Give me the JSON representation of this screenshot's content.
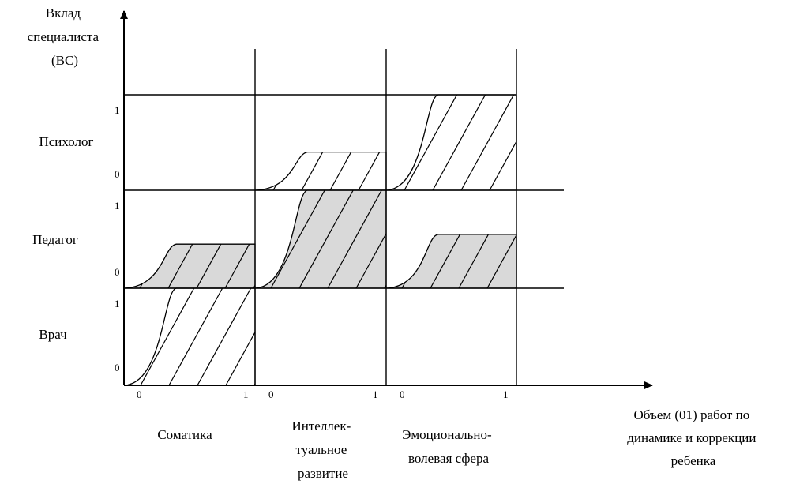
{
  "axes": {
    "y_title": [
      "Вклад",
      "специалиста",
      "(ВС)"
    ],
    "x_title": [
      "Объем (01) работ по",
      "динамике и коррекции",
      "ребенка"
    ]
  },
  "rows": [
    {
      "label": "Психолог",
      "tick_top": "1",
      "tick_bottom": "0"
    },
    {
      "label": "Педагог",
      "tick_top": "1",
      "tick_bottom": "0"
    },
    {
      "label": "Врач",
      "tick_top": "1",
      "tick_bottom": "0"
    }
  ],
  "columns": [
    {
      "label_lines": [
        "Соматика"
      ],
      "tick_start": "0",
      "tick_end": "1"
    },
    {
      "label_lines": [
        "Интеллек-",
        "туальное",
        "развитие"
      ],
      "tick_start": "0",
      "tick_end": "1"
    },
    {
      "label_lines": [
        "Эмоционально-",
        "волевая сфера"
      ],
      "tick_start": "0",
      "tick_end": "1"
    }
  ],
  "contributions": [
    {
      "row": "Психолог",
      "column": "Соматика",
      "level": 0,
      "shaded": false
    },
    {
      "row": "Психолог",
      "column": "Интеллек-туальное развитие",
      "level": 0.4,
      "shaded": false
    },
    {
      "row": "Психолог",
      "column": "Эмоционально-волевая сфера",
      "level": 1,
      "shaded": false
    },
    {
      "row": "Педагог",
      "column": "Соматика",
      "level": 0.45,
      "shaded": true
    },
    {
      "row": "Педагог",
      "column": "Интеллек-туальное развитие",
      "level": 1,
      "shaded": true
    },
    {
      "row": "Педагог",
      "column": "Эмоционально-волевая сфера",
      "level": 0.55,
      "shaded": true
    },
    {
      "row": "Врач",
      "column": "Соматика",
      "level": 1,
      "shaded": false
    },
    {
      "row": "Врач",
      "column": "Интеллек-туальное развитие",
      "level": 0,
      "shaded": false
    },
    {
      "row": "Врач",
      "column": "Эмоционально-волевая сфера",
      "level": 0,
      "shaded": false
    }
  ],
  "colors": {
    "line": "#000000",
    "shade": "#d9d9d9",
    "background": "#ffffff"
  }
}
